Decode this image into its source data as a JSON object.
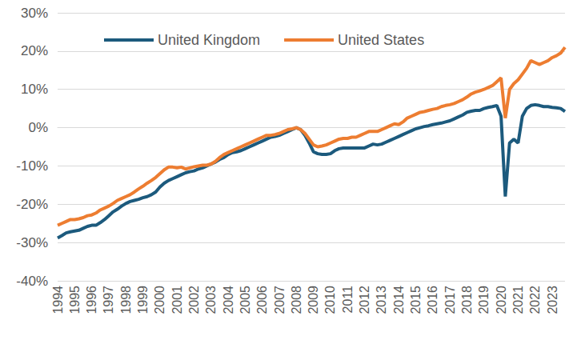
{
  "chart_data": {
    "type": "line",
    "categories": [
      "1994",
      null,
      null,
      null,
      "1995",
      null,
      null,
      null,
      "1996",
      null,
      null,
      null,
      "1997",
      null,
      null,
      null,
      "1998",
      null,
      null,
      null,
      "1999",
      null,
      null,
      null,
      "2000",
      null,
      null,
      null,
      "2001",
      null,
      null,
      null,
      "2002",
      null,
      null,
      null,
      "2003",
      null,
      null,
      null,
      "2004",
      null,
      null,
      null,
      "2005",
      null,
      null,
      null,
      "2006",
      null,
      null,
      null,
      "2007",
      null,
      null,
      null,
      "2008",
      null,
      null,
      null,
      "2009",
      null,
      null,
      null,
      "2010",
      null,
      null,
      null,
      "2011",
      null,
      null,
      null,
      "2012",
      null,
      null,
      null,
      "2013",
      null,
      null,
      null,
      "2014",
      null,
      null,
      null,
      "2015",
      null,
      null,
      null,
      "2016",
      null,
      null,
      null,
      "2017",
      null,
      null,
      null,
      "2018",
      null,
      null,
      null,
      "2019",
      null,
      null,
      null,
      "2020",
      null,
      null,
      null,
      "2021",
      null,
      null,
      null,
      "2022",
      null,
      null,
      null,
      "2023",
      null,
      null,
      null
    ],
    "series": [
      {
        "name": "United Kingdom",
        "color": "#1c5a7d",
        "values": [
          -28.8,
          -28.2,
          -27.5,
          -27.2,
          -27,
          -26.8,
          -26.3,
          -25.8,
          -25.5,
          -25.5,
          -24.8,
          -24,
          -23,
          -22,
          -21.3,
          -20.5,
          -19.8,
          -19.3,
          -19,
          -18.7,
          -18.3,
          -18,
          -17.5,
          -16.8,
          -15.5,
          -14.5,
          -13.8,
          -13.3,
          -12.8,
          -12.3,
          -11.8,
          -11.5,
          -11.3,
          -10.8,
          -10.5,
          -10,
          -9.5,
          -9,
          -8.3,
          -7.8,
          -7,
          -6.5,
          -6.3,
          -6,
          -5.5,
          -5,
          -4.5,
          -4,
          -3.5,
          -3,
          -2.5,
          -2.3,
          -2,
          -1.5,
          -1,
          -0.5,
          0,
          -0.5,
          -2,
          -4,
          -6.3,
          -6.8,
          -7,
          -7,
          -6.8,
          -6,
          -5.5,
          -5.3,
          -5.3,
          -5.3,
          -5.3,
          -5.3,
          -5.3,
          -4.8,
          -4.3,
          -4.5,
          -4.3,
          -3.8,
          -3.3,
          -2.8,
          -2.3,
          -1.8,
          -1.3,
          -0.8,
          -0.3,
          0,
          0.3,
          0.5,
          0.8,
          1,
          1.2,
          1.5,
          1.8,
          2.3,
          2.8,
          3.3,
          4,
          4.3,
          4.5,
          4.5,
          5,
          5.3,
          5.5,
          5.8,
          3,
          -18,
          -4,
          -3,
          -4,
          3,
          5,
          5.8,
          6,
          5.8,
          5.5,
          5.5,
          5.3,
          5.2,
          5,
          4.2
        ]
      },
      {
        "name": "United States",
        "color": "#ed7d31",
        "values": [
          -25.5,
          -25,
          -24.5,
          -24,
          -24,
          -23.8,
          -23.5,
          -23,
          -22.8,
          -22.3,
          -21.5,
          -21,
          -20.5,
          -19.8,
          -19,
          -18.5,
          -18,
          -17.5,
          -16.8,
          -16,
          -15.3,
          -14.5,
          -13.8,
          -13,
          -12,
          -11,
          -10.3,
          -10.3,
          -10.5,
          -10.3,
          -10.8,
          -10.5,
          -10.2,
          -10,
          -9.8,
          -9.8,
          -9.5,
          -8.8,
          -7.8,
          -7,
          -6.5,
          -6,
          -5.5,
          -5,
          -4.5,
          -4,
          -3.5,
          -3,
          -2.5,
          -2,
          -2,
          -1.8,
          -1.5,
          -1,
          -0.5,
          -0.3,
          0,
          -0.5,
          -1.5,
          -3,
          -4.5,
          -5,
          -4.8,
          -4.5,
          -4,
          -3.5,
          -3,
          -2.8,
          -2.8,
          -2.5,
          -2.5,
          -2,
          -1.5,
          -1,
          -1,
          -1,
          -0.5,
          0,
          0.5,
          1,
          0.8,
          1.5,
          2.5,
          3,
          3.5,
          4,
          4.2,
          4.5,
          4.8,
          5,
          5.5,
          5.8,
          6,
          6.3,
          6.8,
          7.3,
          8,
          8.8,
          9.3,
          9.6,
          10,
          10.5,
          11,
          12,
          13,
          2.5,
          10,
          11.5,
          12.5,
          14,
          15.5,
          17.5,
          17,
          16.5,
          17,
          17.5,
          18.3,
          18.8,
          19.5,
          21
        ]
      }
    ],
    "ylim": [
      -40,
      30
    ],
    "yticks": [
      {
        "value": -40,
        "label": "-40%"
      },
      {
        "value": -30,
        "label": "-30%"
      },
      {
        "value": -20,
        "label": "-20%"
      },
      {
        "value": -10,
        "label": "-10%"
      },
      {
        "value": 0,
        "label": "0%"
      },
      {
        "value": 10,
        "label": "10%"
      },
      {
        "value": 20,
        "label": "20%"
      },
      {
        "value": 30,
        "label": "30%"
      }
    ],
    "grid": true,
    "legend": "upper left"
  }
}
